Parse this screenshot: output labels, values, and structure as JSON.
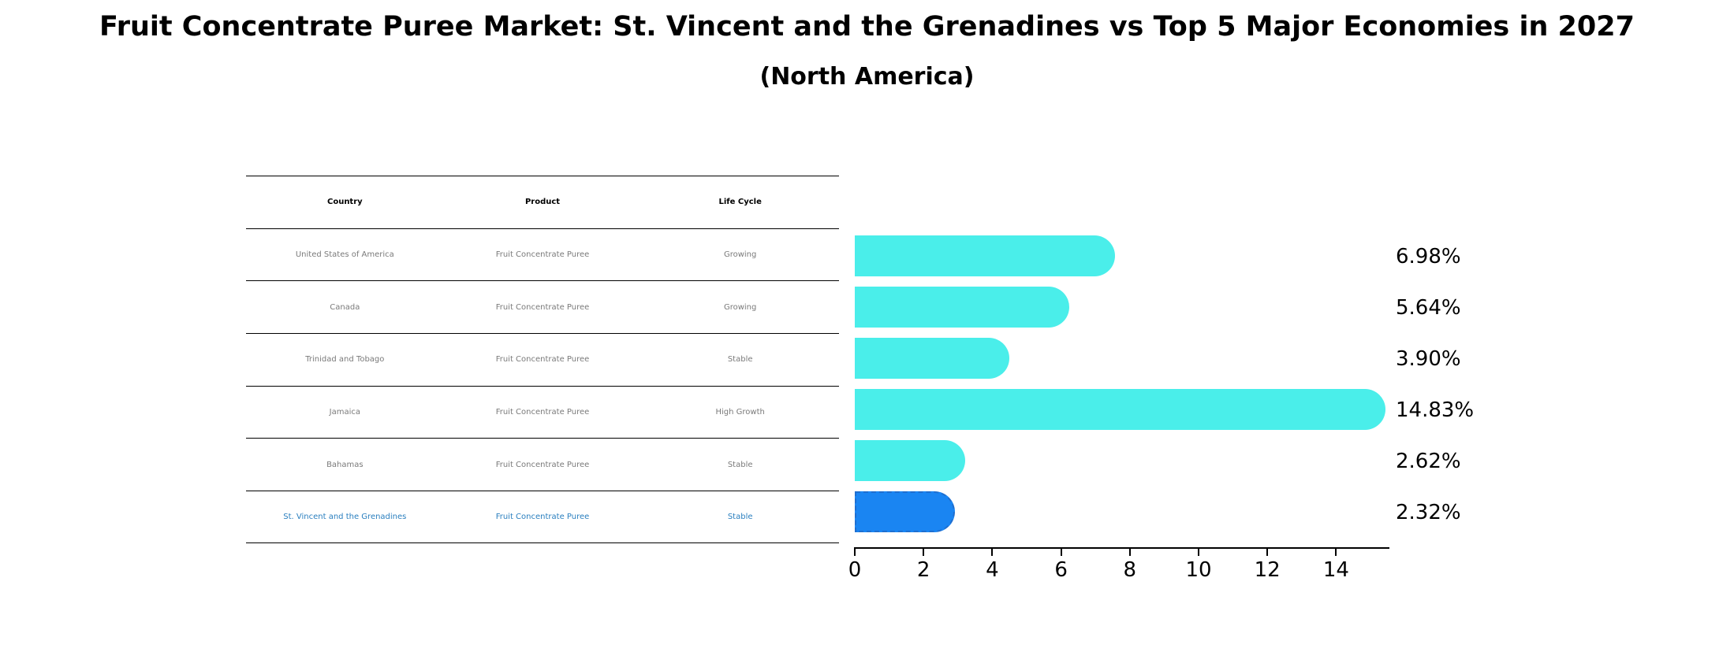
{
  "header": {
    "title": "Fruit Concentrate Puree Market: St. Vincent and the Grenadines vs Top 5 Major Economies in 2027",
    "subtitle": "(North America)"
  },
  "table": {
    "columns": [
      "Country",
      "Product",
      "Life Cycle"
    ],
    "rows": [
      [
        "United States of America",
        "Fruit Concentrate Puree",
        "Growing"
      ],
      [
        "Canada",
        "Fruit Concentrate Puree",
        "Growing"
      ],
      [
        "Trinidad and Tobago",
        "Fruit Concentrate Puree",
        "Stable"
      ],
      [
        "Jamaica",
        "Fruit Concentrate Puree",
        "High Growth"
      ],
      [
        "Bahamas",
        "Fruit Concentrate Puree",
        "Stable"
      ],
      [
        "St. Vincent and the Grenadines",
        "Fruit Concentrate Puree",
        "Stable"
      ]
    ],
    "highlight_row": 5
  },
  "colors": {
    "bar": "#4aeeea",
    "highlight_bar": "#1a85f2",
    "highlight_text": "#2a7fbf",
    "table_text": "#7a7a7a"
  },
  "chart_data": {
    "type": "bar",
    "orientation": "horizontal",
    "title": "Fruit Concentrate Puree Market: St. Vincent and the Grenadines vs Top 5 Major Economies in 2027",
    "subtitle": "(North America)",
    "categories": [
      "United States of America",
      "Canada",
      "Trinidad and Tobago",
      "Jamaica",
      "Bahamas",
      "St. Vincent and the Grenadines"
    ],
    "values": [
      6.98,
      5.64,
      3.9,
      14.83,
      2.62,
      2.32
    ],
    "value_labels": [
      "6.98%",
      "5.64%",
      "3.90%",
      "14.83%",
      "2.62%",
      "2.32%"
    ],
    "highlighted_category": "St. Vincent and the Grenadines",
    "xlabel": "",
    "ylabel": "",
    "xticks": [
      "0",
      "2",
      "4",
      "6",
      "8",
      "10",
      "12",
      "14"
    ],
    "xlim": [
      0,
      15.6
    ],
    "grid": false,
    "legend": null
  }
}
